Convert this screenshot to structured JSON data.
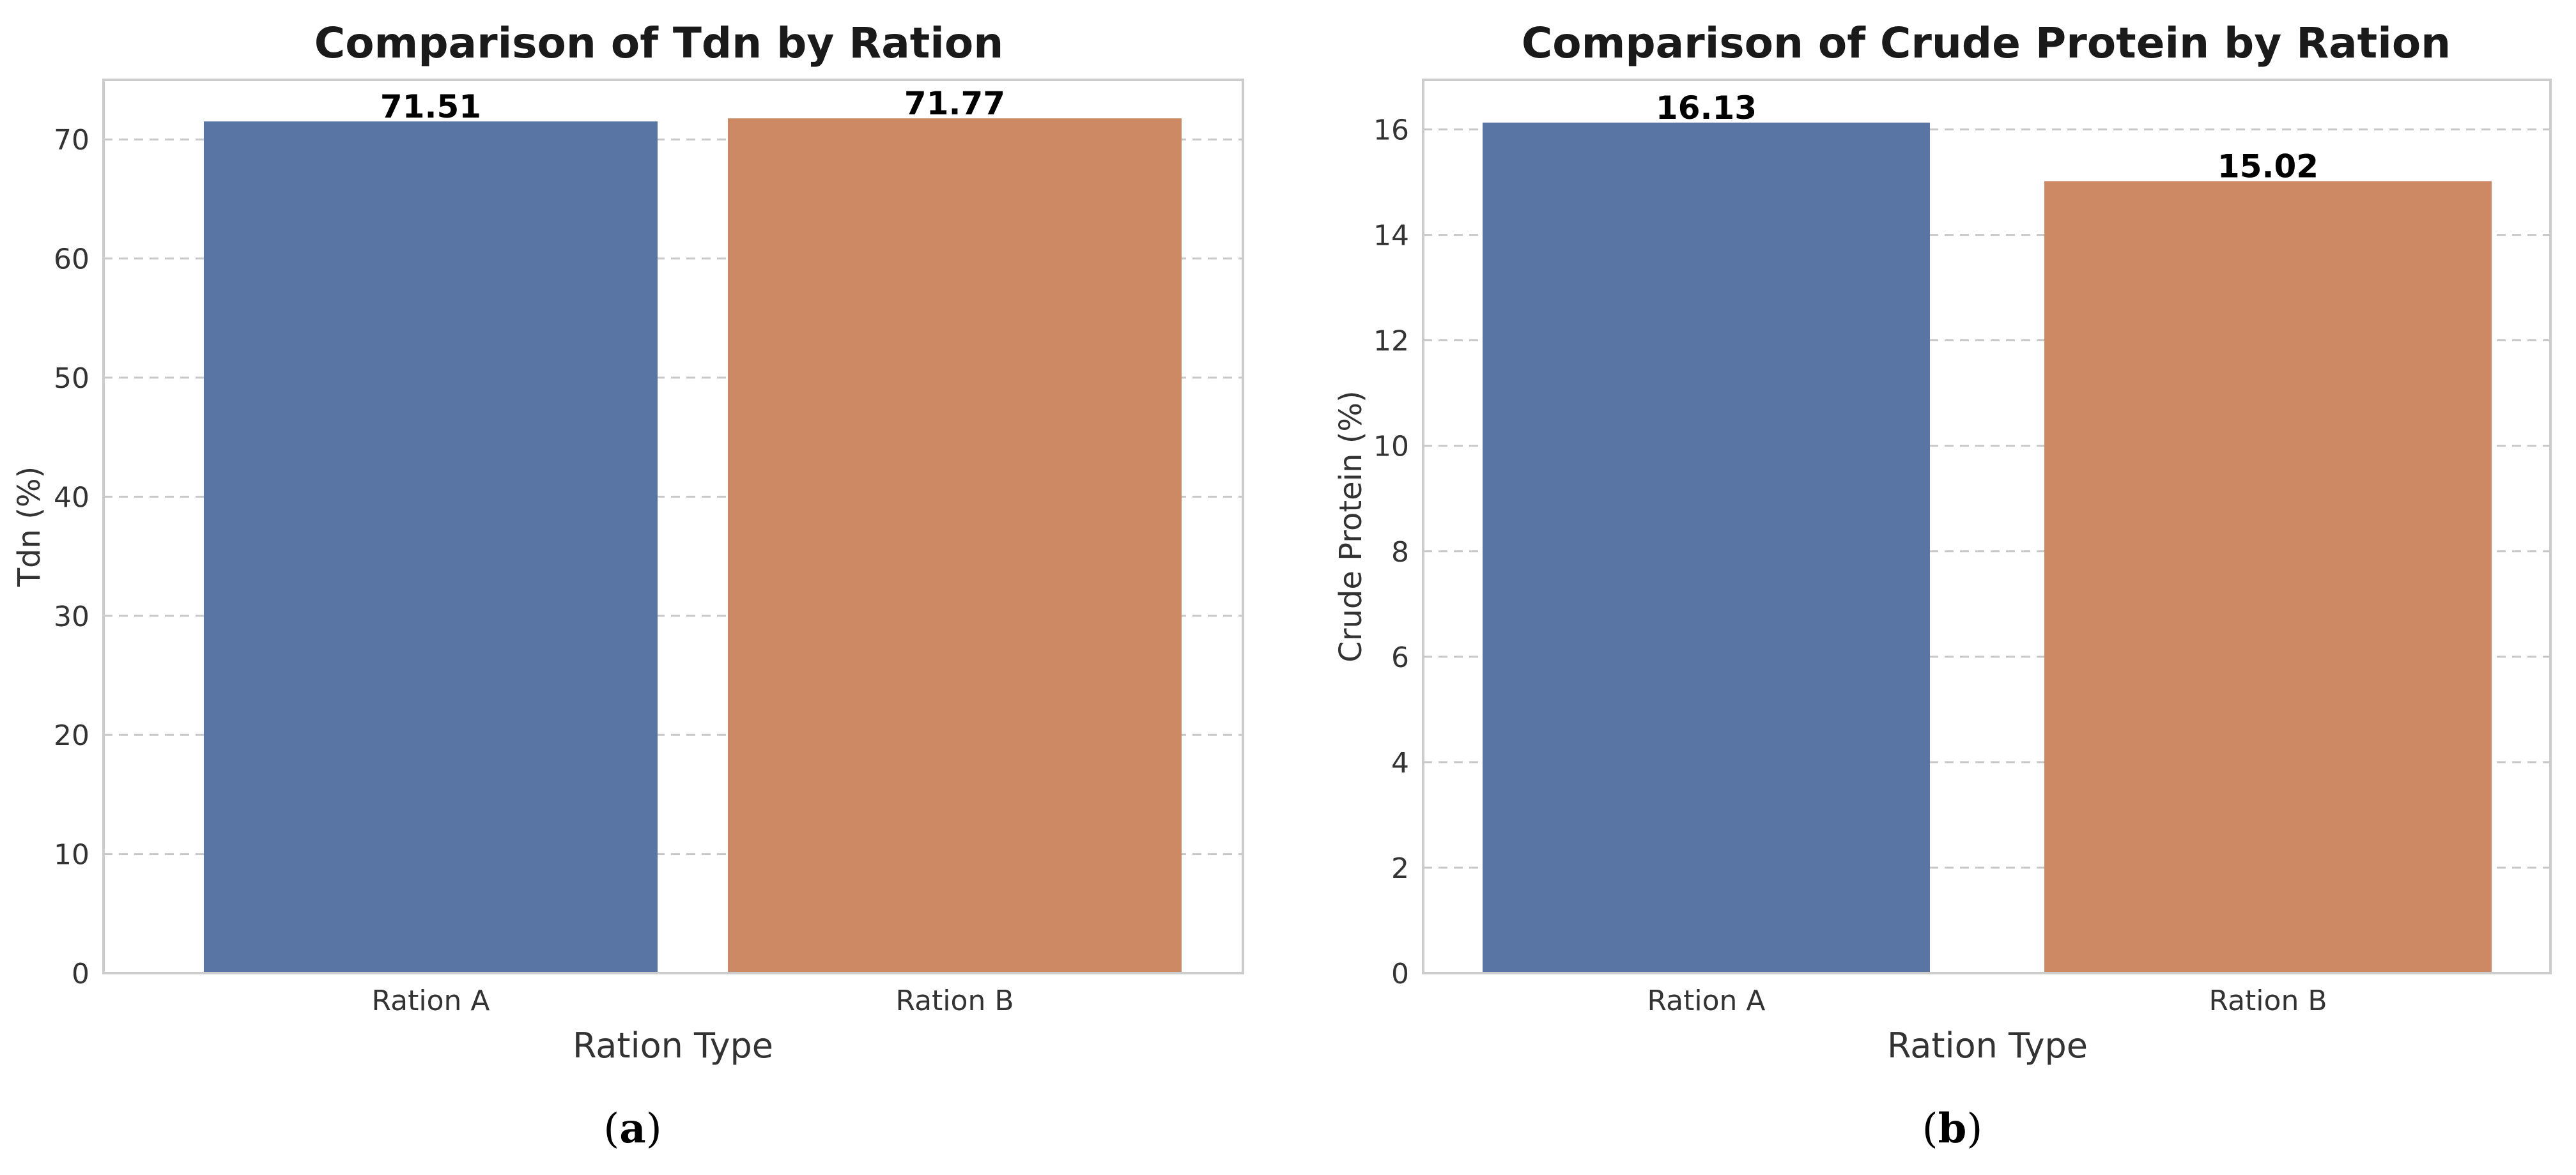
{
  "chart_data": [
    {
      "type": "bar",
      "title": "Comparison of Tdn by Ration",
      "xlabel": "Ration Type",
      "ylabel": "Tdn (%)",
      "categories": [
        "Ration A",
        "Ration B"
      ],
      "values": [
        71.51,
        71.77
      ],
      "value_labels": [
        "71.51",
        "71.77"
      ],
      "colors": [
        "#5875a4",
        "#cc8963"
      ],
      "ylim": [
        0,
        75
      ],
      "yticks": [
        0,
        10,
        20,
        30,
        40,
        50,
        60,
        70
      ],
      "grid": true,
      "panel_label": "a"
    },
    {
      "type": "bar",
      "title": "Comparison of Crude Protein by Ration",
      "xlabel": "Ration Type",
      "ylabel": "Crude Protein (%)",
      "categories": [
        "Ration A",
        "Ration B"
      ],
      "values": [
        16.13,
        15.02
      ],
      "value_labels": [
        "16.13",
        "15.02"
      ],
      "colors": [
        "#5875a4",
        "#cc8963"
      ],
      "ylim": [
        0,
        16.94
      ],
      "yticks": [
        0,
        2,
        4,
        6,
        8,
        10,
        12,
        14,
        16
      ],
      "grid": true,
      "panel_label": "b"
    }
  ]
}
